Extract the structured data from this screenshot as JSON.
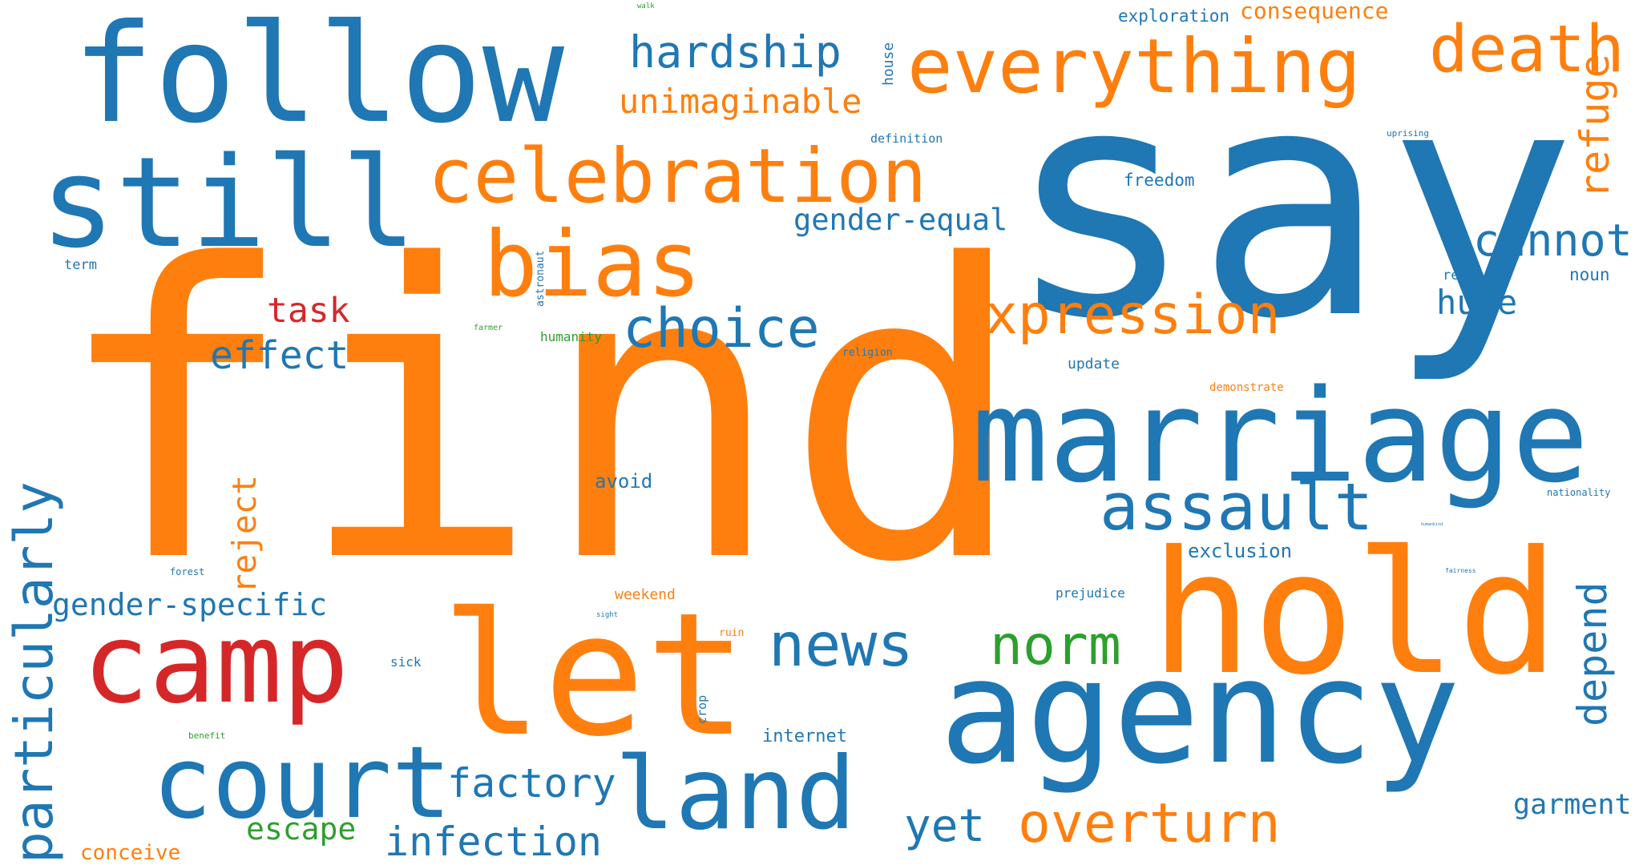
{
  "words": [
    "find",
    "say",
    "follow",
    "still",
    "hold",
    "marriage",
    "let",
    "agency",
    "camp",
    "court",
    "land",
    "everything",
    "celebration",
    "bias",
    "death",
    "particularly",
    "expression",
    "assault",
    "choice",
    "news",
    "hardship",
    "overturn",
    "norm",
    "infection",
    "refuge",
    "cannot",
    "depend",
    "factory",
    "reject",
    "yet",
    "unimaginable",
    "effect",
    "task",
    "gender-specific",
    "gender-equal",
    "escape",
    "huge",
    "garment",
    "consequence",
    "conceive",
    "exploration",
    "exclusion",
    "avoid",
    "internet",
    "freedom",
    "noun",
    "update",
    "house",
    "weekend",
    "definition",
    "prejudice",
    "humanity",
    "sick",
    "demonstrate",
    "relative",
    "term",
    "religion",
    "ruin",
    "crop",
    "astronaut",
    "nationality",
    "uprising",
    "forest",
    "farmer",
    "sight",
    "benefit",
    "walk",
    "fairness",
    "humankind"
  ],
  "colors": {
    "blue": "#1f77b4",
    "orange": "#ff7f0e",
    "red": "#d62728",
    "green": "#2ca02c"
  }
}
